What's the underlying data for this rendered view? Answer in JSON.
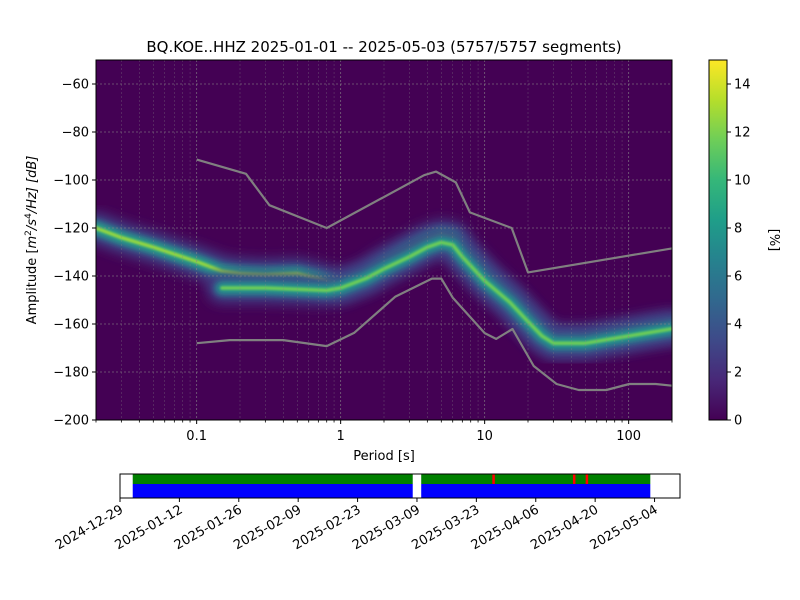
{
  "chart_data": {
    "type": "heatmap",
    "title": "BQ.KOE..HHZ   2025-01-01 -- 2025-05-03  (5757/5757 segments)",
    "xlabel": "Period [s]",
    "ylabel": "Amplitude [m2/s4/Hz] [dB]",
    "ylabel_parts": {
      "prefix": "Amplitude [",
      "m": "m",
      "exp2": "2",
      "s": "/s",
      "exp4": "4",
      "tail": "/Hz] [dB]"
    },
    "x_scale": "log",
    "xlim": [
      0.02,
      200
    ],
    "ylim": [
      -200,
      -50
    ],
    "x_ticks": [
      {
        "value": 0.1,
        "label": "0.1"
      },
      {
        "value": 1,
        "label": "1"
      },
      {
        "value": 10,
        "label": "10"
      },
      {
        "value": 100,
        "label": "100"
      }
    ],
    "y_ticks": [
      {
        "value": -60,
        "label": "−60"
      },
      {
        "value": -80,
        "label": "−80"
      },
      {
        "value": -100,
        "label": "−100"
      },
      {
        "value": -120,
        "label": "−120"
      },
      {
        "value": -140,
        "label": "−140"
      },
      {
        "value": -160,
        "label": "−160"
      },
      {
        "value": -180,
        "label": "−180"
      },
      {
        "value": -200,
        "label": "−200"
      }
    ],
    "grid": true,
    "colorbar": {
      "label": "[%]",
      "range": [
        0,
        15
      ],
      "ticks": [
        {
          "value": 0,
          "label": "0"
        },
        {
          "value": 2,
          "label": "2"
        },
        {
          "value": 4,
          "label": "4"
        },
        {
          "value": 6,
          "label": "6"
        },
        {
          "value": 8,
          "label": "8"
        },
        {
          "value": 10,
          "label": "10"
        },
        {
          "value": 12,
          "label": "12"
        },
        {
          "value": 14,
          "label": "14"
        }
      ],
      "colormap": "viridis"
    },
    "density_ridges": [
      {
        "name": "upper",
        "points": [
          [
            0.02,
            -120
          ],
          [
            0.03,
            -124
          ],
          [
            0.05,
            -128
          ],
          [
            0.1,
            -134
          ],
          [
            0.15,
            -138
          ],
          [
            0.2,
            -139
          ],
          [
            0.3,
            -139.5
          ],
          [
            0.5,
            -139
          ],
          [
            0.7,
            -141
          ],
          [
            1.0,
            -144
          ],
          [
            1.5,
            -140
          ],
          [
            2.0,
            -135
          ],
          [
            3.0,
            -129
          ],
          [
            4.0,
            -125
          ],
          [
            5.0,
            -123
          ],
          [
            6.0,
            -124
          ],
          [
            7.0,
            -130
          ],
          [
            10,
            -140
          ],
          [
            15,
            -150
          ],
          [
            20,
            -158
          ],
          [
            25,
            -164
          ],
          [
            30,
            -167
          ],
          [
            50,
            -167
          ],
          [
            100,
            -164
          ],
          [
            150,
            -162
          ],
          [
            200,
            -161
          ]
        ],
        "peak_percent": 14
      },
      {
        "name": "lower",
        "points": [
          [
            0.15,
            -145
          ],
          [
            0.2,
            -145
          ],
          [
            0.3,
            -145
          ],
          [
            0.5,
            -145.5
          ],
          [
            0.8,
            -146
          ],
          [
            1.0,
            -145
          ],
          [
            1.5,
            -141
          ],
          [
            2.0,
            -137
          ],
          [
            3.0,
            -132
          ],
          [
            4.0,
            -128
          ],
          [
            5.0,
            -126
          ],
          [
            6.0,
            -127
          ],
          [
            7.0,
            -132
          ],
          [
            10,
            -142
          ],
          [
            15,
            -151
          ],
          [
            20,
            -159
          ],
          [
            25,
            -165
          ],
          [
            30,
            -168
          ],
          [
            50,
            -168
          ],
          [
            100,
            -165
          ],
          [
            200,
            -162
          ]
        ],
        "peak_percent": 13
      }
    ],
    "noise_models": [
      {
        "name": "upper",
        "color": "#808080",
        "points": [
          [
            0.1,
            -91.5
          ],
          [
            0.22,
            -97.4
          ],
          [
            0.32,
            -110.5
          ],
          [
            0.8,
            -120
          ],
          [
            3.8,
            -98
          ],
          [
            4.6,
            -96.5
          ],
          [
            6.3,
            -101
          ],
          [
            7.9,
            -113.5
          ],
          [
            15.4,
            -120
          ],
          [
            20,
            -138.5
          ],
          [
            200,
            -128.5
          ]
        ]
      },
      {
        "name": "lower",
        "color": "#808080",
        "points": [
          [
            0.1,
            -168
          ],
          [
            0.17,
            -166.7
          ],
          [
            0.4,
            -166.7
          ],
          [
            0.8,
            -169.2
          ],
          [
            1.24,
            -163.7
          ],
          [
            2.4,
            -148.6
          ],
          [
            4.3,
            -141.1
          ],
          [
            5.0,
            -141.1
          ],
          [
            6.0,
            -149
          ],
          [
            10,
            -163.8
          ],
          [
            12,
            -166.2
          ],
          [
            15.6,
            -162.1
          ],
          [
            21.9,
            -177.5
          ],
          [
            31.6,
            -185
          ],
          [
            45,
            -187.5
          ],
          [
            70,
            -187.5
          ],
          [
            101,
            -185
          ],
          [
            154,
            -185
          ],
          [
            200,
            -185.7
          ]
        ]
      }
    ]
  },
  "coverage": {
    "date_range": [
      "2024-12-29",
      "2025-05-10"
    ],
    "data_start": "2025-01-01",
    "data_end": "2025-05-03",
    "gaps": [
      [
        "2025-03-08",
        "2025-03-10"
      ]
    ],
    "red_markers": [
      "2025-03-27",
      "2025-04-15",
      "2025-04-18"
    ],
    "colors": {
      "ppsd_coverage": "#008000",
      "data_coverage": "#0000ff",
      "marker": "#ff0000"
    },
    "tick_labels": [
      "2024-12-29",
      "2025-01-12",
      "2025-01-26",
      "2025-02-09",
      "2025-02-23",
      "2025-03-09",
      "2025-03-23",
      "2025-04-06",
      "2025-04-20",
      "2025-05-04"
    ]
  }
}
